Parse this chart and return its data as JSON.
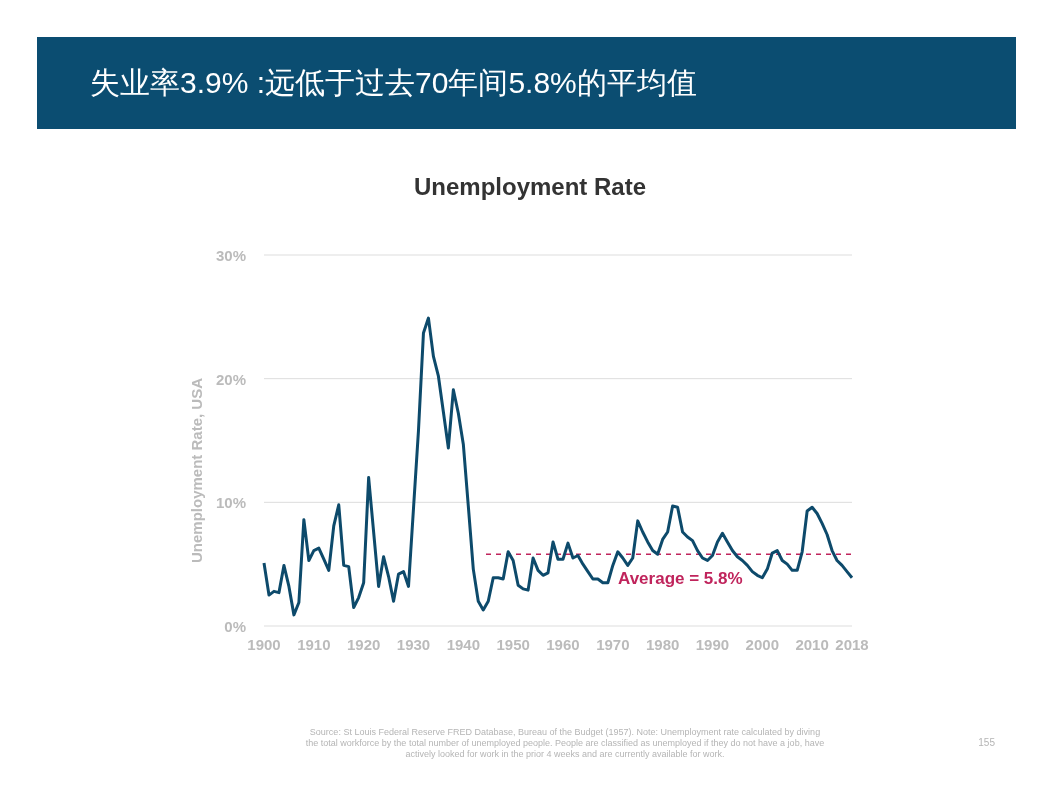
{
  "chart_data": {
    "type": "line",
    "title": "失业率3.9% :远低于过去70年间5.8%的平均值",
    "subtitle": "Unemployment Rate",
    "ylabel": "Unemployment Rate, USA",
    "x": [
      1900,
      1901,
      1902,
      1903,
      1904,
      1905,
      1906,
      1907,
      1908,
      1909,
      1910,
      1911,
      1912,
      1913,
      1914,
      1915,
      1916,
      1917,
      1918,
      1919,
      1920,
      1921,
      1923,
      1924,
      1925,
      1926,
      1927,
      1928,
      1929,
      1931,
      1932,
      1933,
      1934,
      1935,
      1936,
      1937,
      1938,
      1939,
      1940,
      1941,
      1942,
      1943,
      1944,
      1945,
      1946,
      1947,
      1948,
      1949,
      1950,
      1951,
      1952,
      1953,
      1954,
      1955,
      1956,
      1957,
      1958,
      1959,
      1960,
      1961,
      1962,
      1963,
      1964,
      1965,
      1966,
      1967,
      1968,
      1969,
      1970,
      1971,
      1972,
      1973,
      1974,
      1975,
      1976,
      1977,
      1978,
      1979,
      1980,
      1981,
      1982,
      1983,
      1984,
      1985,
      1986,
      1987,
      1988,
      1989,
      1990,
      1991,
      1992,
      1993,
      1994,
      1995,
      1996,
      1997,
      1998,
      1999,
      2000,
      2001,
      2002,
      2003,
      2004,
      2005,
      2006,
      2007,
      2008,
      2009,
      2010,
      2011,
      2012,
      2013,
      2014,
      2015,
      2016,
      2017,
      2018
    ],
    "series": [
      {
        "color": "#0d4a6b",
        "values": [
          5.1,
          2.5,
          2.8,
          2.7,
          4.9,
          3.2,
          0.9,
          1.9,
          8.6,
          5.3,
          6.1,
          6.3,
          5.4,
          4.5,
          8.1,
          9.8,
          4.9,
          4.8,
          1.5,
          2.3,
          3.5,
          12.0,
          3.2,
          5.6,
          4.0,
          2.0,
          4.2,
          4.4,
          3.2,
          15.8,
          23.7,
          24.9,
          21.8,
          20.2,
          17.3,
          14.4,
          19.1,
          17.2,
          14.7,
          9.7,
          4.6,
          2.0,
          1.3,
          2.0,
          3.9,
          3.9,
          3.8,
          6.0,
          5.3,
          3.3,
          3.0,
          2.9,
          5.5,
          4.5,
          4.1,
          4.3,
          6.8,
          5.4,
          5.4,
          6.7,
          5.5,
          5.7,
          5.0,
          4.4,
          3.8,
          3.8,
          3.5,
          3.5,
          4.9,
          6.0,
          5.5,
          4.9,
          5.5,
          8.5,
          7.6,
          6.8,
          6.1,
          5.8,
          7.0,
          7.6,
          9.7,
          9.6,
          7.6,
          7.2,
          6.9,
          6.1,
          5.5,
          5.3,
          5.7,
          6.8,
          7.5,
          6.8,
          6.1,
          5.6,
          5.3,
          4.9,
          4.4,
          4.1,
          3.9,
          4.6,
          5.9,
          6.1,
          5.3,
          5.0,
          4.5,
          4.5,
          6.0,
          9.3,
          9.6,
          9.1,
          8.3,
          7.4,
          6.1,
          5.3,
          4.9,
          4.4,
          3.9
        ]
      }
    ],
    "xlim": [
      1900,
      2018
    ],
    "xticks": [
      1900,
      1910,
      1920,
      1930,
      1940,
      1950,
      1960,
      1970,
      1980,
      1990,
      2000,
      2010,
      2018
    ],
    "ylim": [
      0,
      30
    ],
    "yticks": [
      {
        "value": 0,
        "label": "0%"
      },
      {
        "value": 10,
        "label": "10%"
      },
      {
        "value": 20,
        "label": "20%"
      },
      {
        "value": 30,
        "label": "30%"
      }
    ],
    "grid": "y",
    "marker": "none",
    "line_style": "solid",
    "ref_lines": [
      {
        "axis": "y",
        "value": 5.8,
        "label": "Average = 5.8%",
        "color": "#c0245c",
        "line_style": "dashed"
      }
    ],
    "annotations": [
      "Source: St Louis Federal Reserve FRED Database, Bureau of the Budget (1957). Note: Unemployment rate calculated by diving the total workforce by the total number of unemployed people. People are classified as unemployed if they do not have a job, have actively looked for work in the prior 4 weeks and are currently available for work.",
      "155"
    ]
  }
}
